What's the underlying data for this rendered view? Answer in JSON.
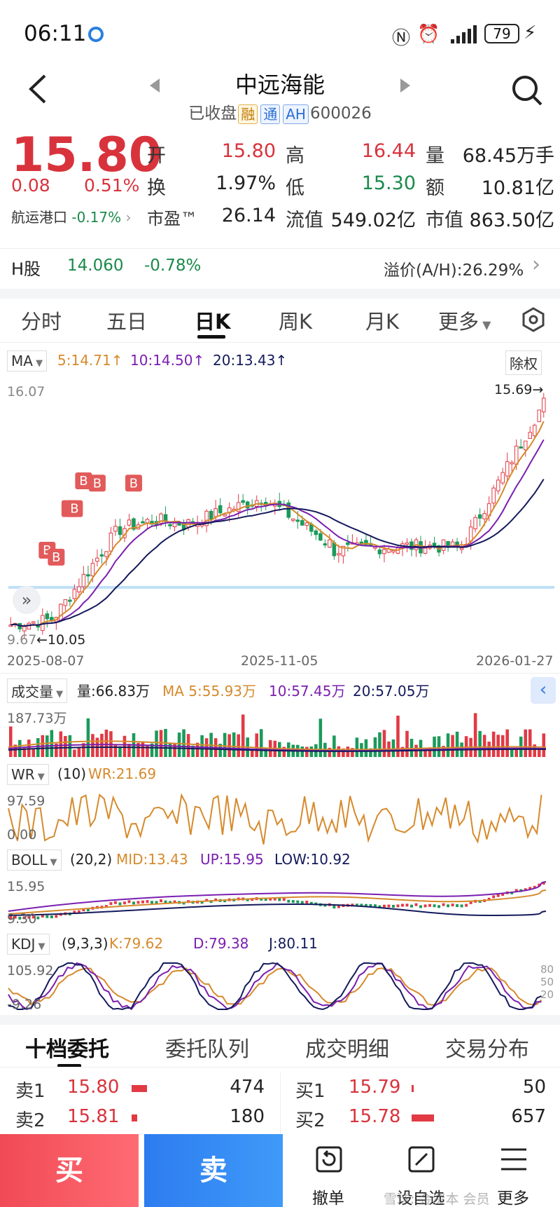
{
  "status": {
    "time": "06:11",
    "battery": "79"
  },
  "header": {
    "title": "中远海能",
    "status_text": "已收盘",
    "tags": [
      "融",
      "通",
      "AH"
    ],
    "code": "600026"
  },
  "quote": {
    "price": "15.80",
    "change": "0.08",
    "change_pct": "0.51%",
    "sector": "航运港口",
    "sector_change": "-0.17%",
    "rows": [
      [
        {
          "label": "开",
          "value": "15.80"
        },
        {
          "label": "高",
          "value": "16.44"
        },
        {
          "label": "量",
          "value": "68.45万手"
        }
      ],
      [
        {
          "label": "换",
          "value": "1.97%"
        },
        {
          "label": "低",
          "value": "15.30"
        },
        {
          "label": "额",
          "value": "10.81亿"
        }
      ],
      [
        {
          "label": "市盈™",
          "value": "26.14"
        },
        {
          "label": "流值",
          "value": "549.02亿"
        },
        {
          "label": "市值",
          "value": "863.50亿"
        }
      ]
    ]
  },
  "hshare": {
    "label": "H股",
    "price": "14.060",
    "change": "-0.78%",
    "premium": "溢价(A/H):26.29%"
  },
  "tabs": [
    "分时",
    "五日",
    "日K",
    "周K",
    "月K",
    "更多"
  ],
  "kline": {
    "ma_label": "MA",
    "ma5": "5:14.71↑",
    "ma10": "10:14.50↑",
    "ma20": "20:13.43↑",
    "adjust": "除权",
    "high_label": "16.07",
    "low_label": "9.67",
    "low_mark": "←10.05",
    "high_mark": "15.69→",
    "dates": [
      "2025-08-07",
      "2025-11-05",
      "2026-01-27"
    ],
    "buy_marker": "B"
  },
  "volume": {
    "label": "成交量",
    "vol": "量:66.83万",
    "ma5": "MA 5:55.93万",
    "ma10": "10:57.45万",
    "ma20": "20:57.05万",
    "max": "187.73万"
  },
  "wr": {
    "label": "WR",
    "params": "(10)",
    "value": "WR:21.69",
    "max": "97.59",
    "min": "0.00"
  },
  "boll": {
    "label": "BOLL",
    "params": "(20,2)",
    "mid": "MID:13.43",
    "up": "UP:15.95",
    "low": "LOW:10.92",
    "top": "15.95",
    "bottom": "9.30"
  },
  "kdj": {
    "label": "KDJ",
    "params": "(9,3,3)",
    "k": "K:79.62",
    "d": "D:79.38",
    "j": "J:80.11",
    "max": "105.92",
    "min": "-9.26",
    "r80": "80",
    "r50": "50",
    "r20": "20"
  },
  "orderbook": {
    "tabs": [
      "十档委托",
      "委托队列",
      "成交明细",
      "交易分布"
    ],
    "sell": [
      {
        "label": "卖1",
        "price": "15.80",
        "qty": "474"
      },
      {
        "label": "卖2",
        "price": "15.81",
        "qty": "180"
      }
    ],
    "buy": [
      {
        "label": "买1",
        "price": "15.79",
        "qty": "50"
      },
      {
        "label": "买2",
        "price": "15.78",
        "qty": "657"
      }
    ]
  },
  "bottom": {
    "buy": "买",
    "sell": "卖",
    "cancel": "撤单",
    "watch": "设自选",
    "more": "更多",
    "watermark": "雪球: 金资本 会员"
  }
}
